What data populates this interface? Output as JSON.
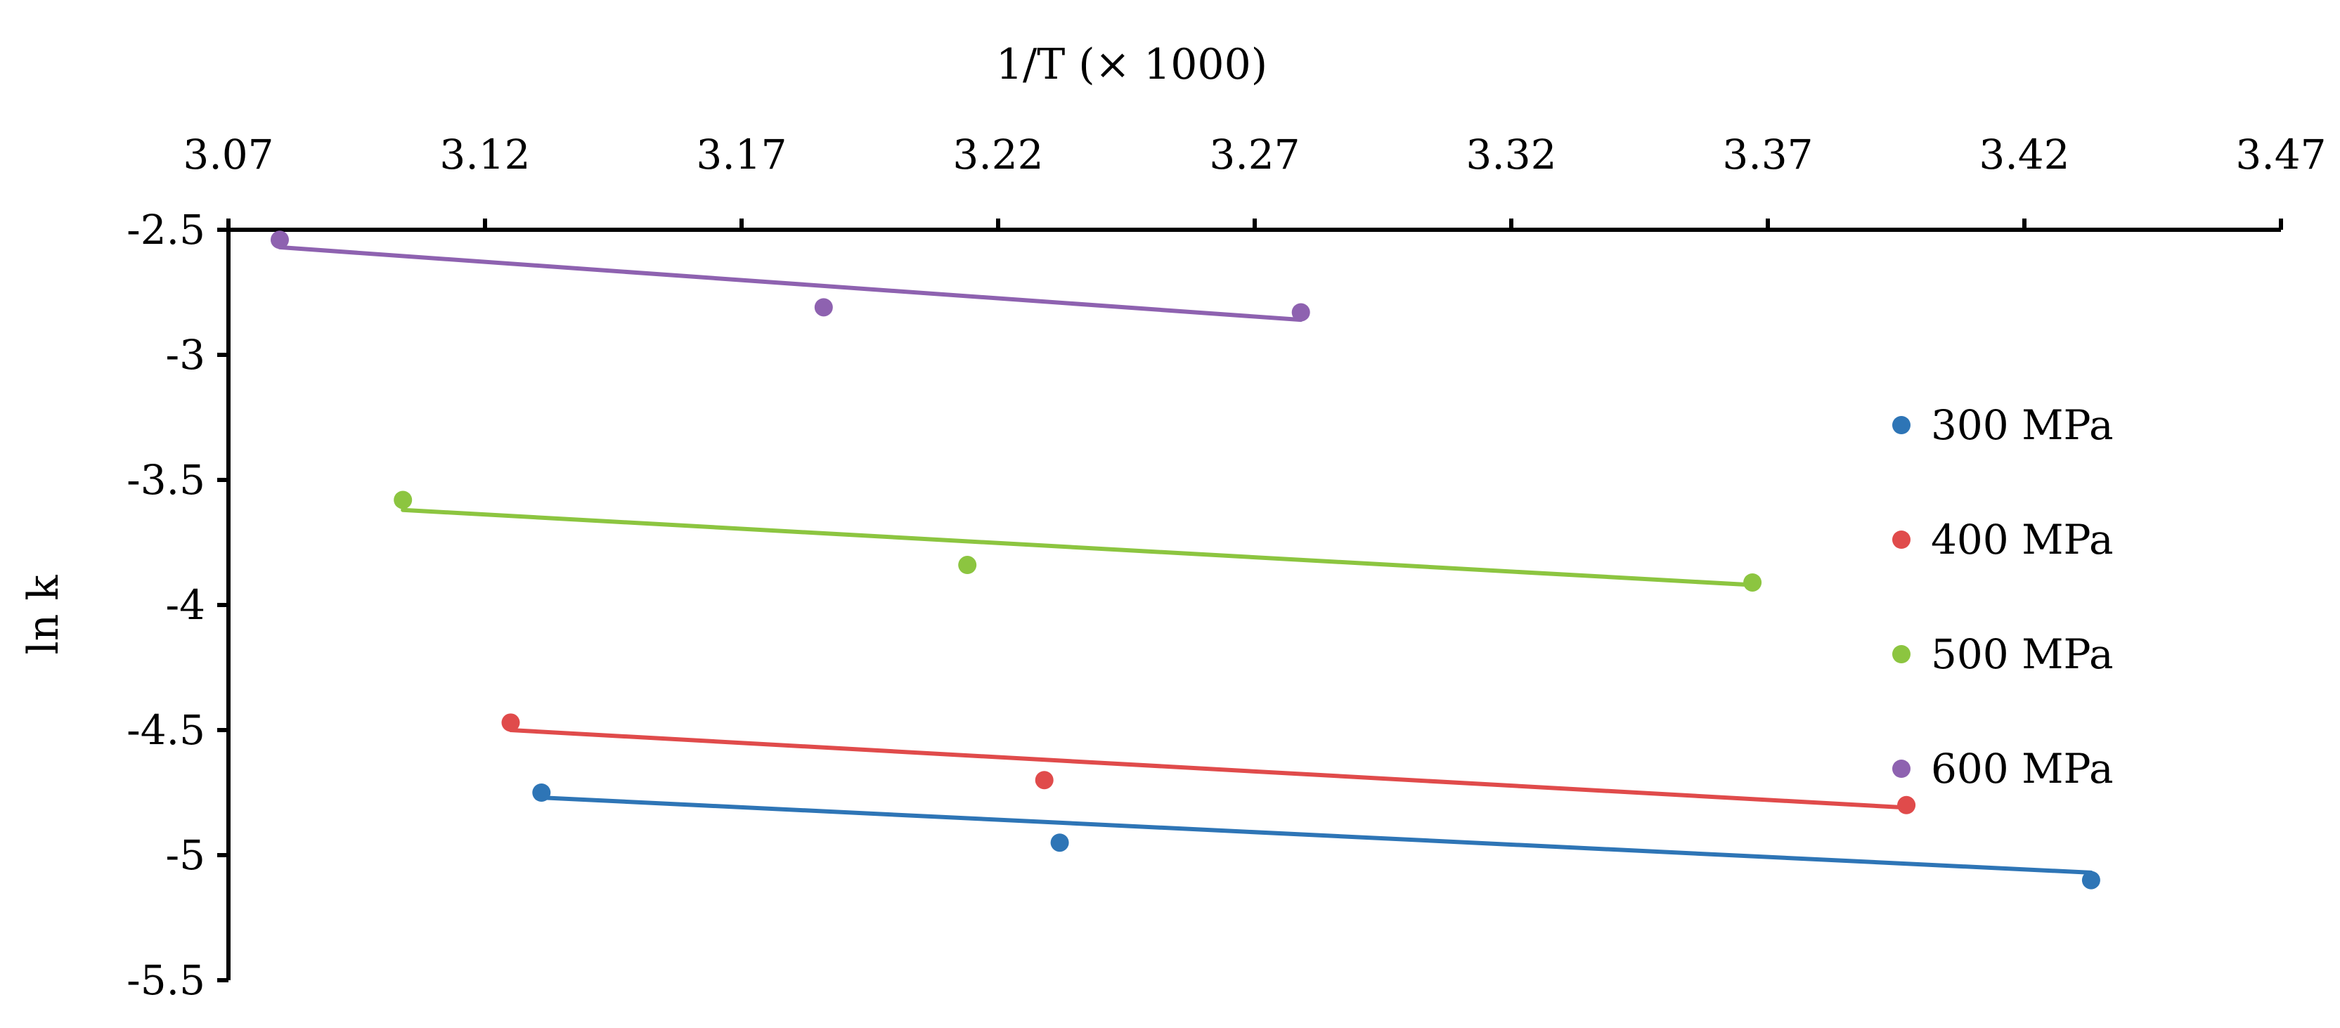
{
  "chart_data": {
    "type": "scatter",
    "xlabel": "1/T (× 1000)",
    "ylabel": "ln k",
    "xlim": [
      3.07,
      3.47
    ],
    "ylim": [
      -5.5,
      -2.5
    ],
    "xticks": [
      "3.07",
      "3.12",
      "3.17",
      "3.22",
      "3.27",
      "3.32",
      "3.37",
      "3.42",
      "3.47"
    ],
    "yticks": [
      "-2.5",
      "-3",
      "-3.5",
      "-4",
      "-4.5",
      "-5",
      "-5.5"
    ],
    "x_axis_position": "top",
    "grid": false,
    "legend_position": "right",
    "trendlines": "linear",
    "series": [
      {
        "name": "300 MPa",
        "color": "#2e75b6",
        "points": [
          [
            3.131,
            -4.75
          ],
          [
            3.232,
            -4.95
          ],
          [
            3.433,
            -5.1
          ]
        ],
        "fit": [
          [
            3.131,
            -4.77
          ],
          [
            3.433,
            -5.07
          ]
        ]
      },
      {
        "name": "400 MPa",
        "color": "#e04b4b",
        "points": [
          [
            3.125,
            -4.47
          ],
          [
            3.229,
            -4.7
          ],
          [
            3.397,
            -4.8
          ]
        ],
        "fit": [
          [
            3.125,
            -4.5
          ],
          [
            3.397,
            -4.81
          ]
        ]
      },
      {
        "name": "500 MPa",
        "color": "#8cc540",
        "points": [
          [
            3.104,
            -3.58
          ],
          [
            3.214,
            -3.84
          ],
          [
            3.367,
            -3.91
          ]
        ],
        "fit": [
          [
            3.104,
            -3.62
          ],
          [
            3.367,
            -3.92
          ]
        ]
      },
      {
        "name": "600 MPa",
        "color": "#8e62b0",
        "points": [
          [
            3.08,
            -2.54
          ],
          [
            3.186,
            -2.81
          ],
          [
            3.279,
            -2.83
          ]
        ],
        "fit": [
          [
            3.08,
            -2.57
          ],
          [
            3.279,
            -2.86
          ]
        ]
      }
    ]
  }
}
